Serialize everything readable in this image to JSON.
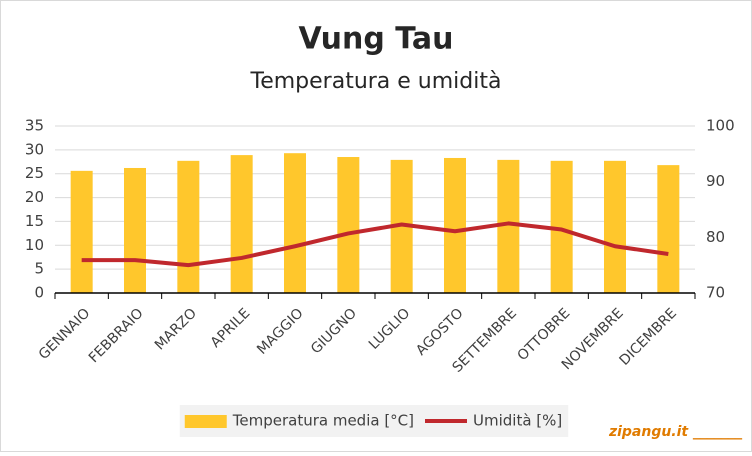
{
  "chart_data": {
    "type": "bar_line",
    "title": "Vung Tau",
    "subtitle": "Temperatura e umidità",
    "categories": [
      "GENNAIO",
      "FEBBRAIO",
      "MARZO",
      "APRILE",
      "MAGGIO",
      "GIUGNO",
      "LUGLIO",
      "AGOSTO",
      "SETTEMBRE",
      "OTTOBRE",
      "NOVEMBRE",
      "DICEMBRE"
    ],
    "series": [
      {
        "name": "Temperatura media [°C]",
        "type": "bar",
        "color": "#ffc72c",
        "values": [
          25.6,
          26.2,
          27.7,
          28.9,
          29.3,
          28.5,
          27.9,
          28.3,
          27.9,
          27.7,
          27.7,
          26.8
        ]
      },
      {
        "name": "Umidità [%]",
        "type": "line",
        "axis": "y2",
        "color": "#c0282d",
        "values": [
          75.9,
          75.9,
          75.0,
          76.3,
          78.4,
          80.7,
          82.3,
          81.1,
          82.5,
          81.4,
          78.4,
          77.0
        ]
      }
    ],
    "ylim": [
      0,
      35
    ],
    "yticks": [
      0,
      5,
      10,
      15,
      20,
      25,
      30,
      35
    ],
    "y2lim": [
      70,
      100
    ],
    "y2ticks": [
      70,
      80,
      90,
      100
    ],
    "grid": true,
    "legend": "bottom",
    "watermark": "zipangu.it _______"
  }
}
